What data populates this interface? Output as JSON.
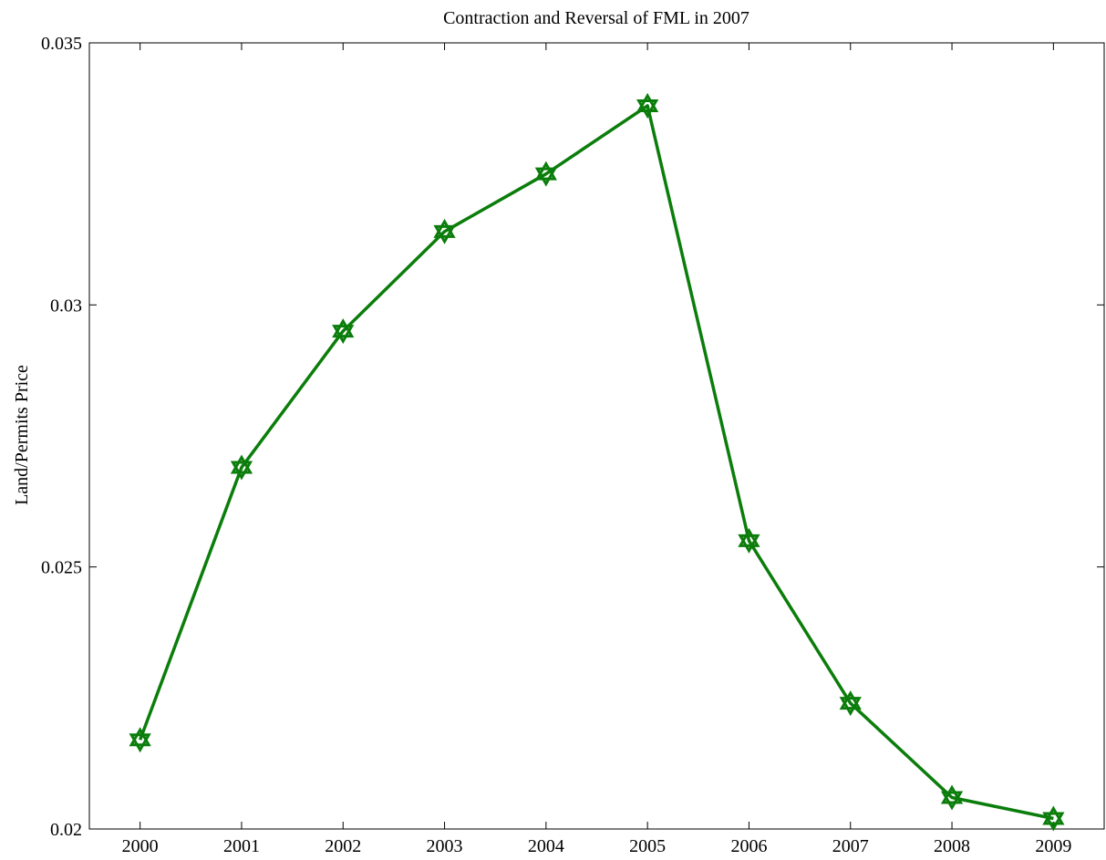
{
  "chart_data": {
    "type": "line",
    "title": "Contraction and Reversal of FML in 2007",
    "xlabel": "",
    "ylabel": "Land/Permits Price",
    "x": [
      2000,
      2001,
      2002,
      2003,
      2004,
      2005,
      2006,
      2007,
      2008,
      2009
    ],
    "x_tick_labels": [
      "2000",
      "2001",
      "2002",
      "2003",
      "2004",
      "2005",
      "2006",
      "2007",
      "2008",
      "2009"
    ],
    "y_tick_labels": [
      "0.02",
      "0.025",
      "0.03",
      "0.035"
    ],
    "y_ticks": [
      0.02,
      0.025,
      0.03,
      0.035
    ],
    "ylim": [
      0.02,
      0.035
    ],
    "xlim": [
      1999.5,
      2009.5
    ],
    "grid": false,
    "series": [
      {
        "color": "#0b7d0b",
        "marker": "hexagram",
        "values": [
          0.0217,
          0.0269,
          0.0295,
          0.0314,
          0.0325,
          0.0338,
          0.0255,
          0.0224,
          0.0206,
          0.0202
        ]
      }
    ]
  }
}
